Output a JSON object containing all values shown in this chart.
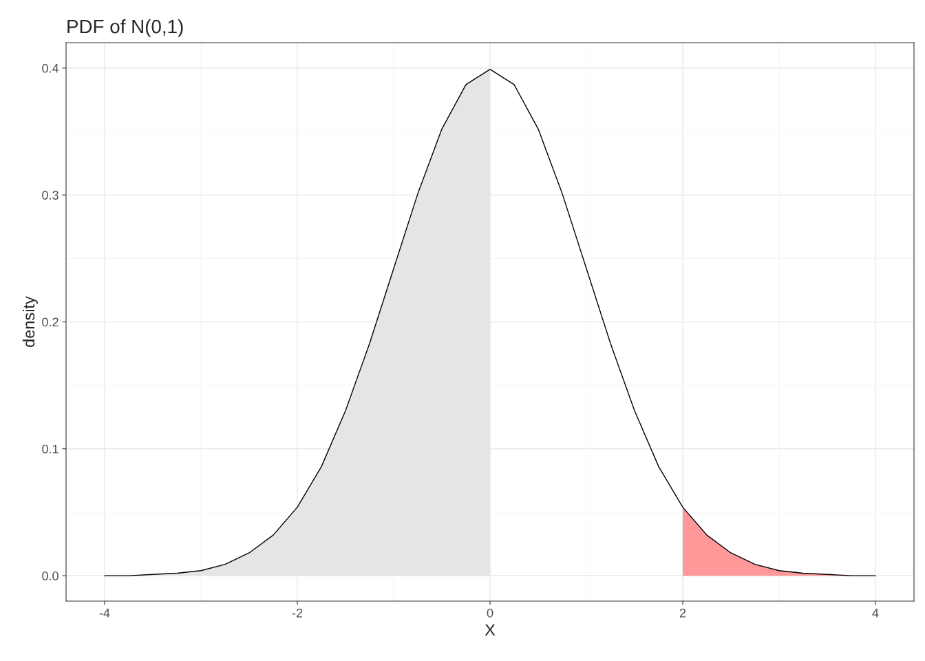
{
  "chart_data": {
    "type": "line",
    "title": "PDF of N(0,1)",
    "xlabel": "X",
    "ylabel": "density",
    "xlim": [
      -4.4,
      4.4
    ],
    "xticks": [
      -4,
      -2,
      0,
      2,
      4
    ],
    "ylim": [
      -0.02,
      0.42
    ],
    "yticks": [
      {
        "value": 0,
        "label": "0.0"
      },
      0.1,
      0.2,
      0.3,
      0.4
    ],
    "grid": true,
    "legend": false,
    "marker": "none",
    "line_style": "solid",
    "series": [
      {
        "type": "area",
        "color": "#e5e5e5",
        "x": [
          -4,
          -3.75,
          -3.5,
          -3.25,
          -3,
          -2.75,
          -2.5,
          -2.25,
          -2,
          -1.75,
          -1.5,
          -1.25,
          -1,
          -0.75,
          -0.5,
          -0.25,
          0
        ],
        "values": [
          0.0,
          0.0,
          0.001,
          0.002,
          0.004,
          0.009,
          0.018,
          0.032,
          0.054,
          0.086,
          0.13,
          0.183,
          0.242,
          0.301,
          0.352,
          0.387,
          0.399
        ]
      },
      {
        "type": "area",
        "color": "#ff9999",
        "x": [
          2,
          2.25,
          2.5,
          2.75,
          3,
          3.25,
          3.5,
          3.75,
          4
        ],
        "values": [
          0.054,
          0.032,
          0.018,
          0.009,
          0.004,
          0.002,
          0.001,
          0.0,
          0.0
        ]
      },
      {
        "color": "#000000",
        "x": [
          -4,
          -3.75,
          -3.5,
          -3.25,
          -3,
          -2.75,
          -2.5,
          -2.25,
          -2,
          -1.75,
          -1.5,
          -1.25,
          -1,
          -0.75,
          -0.5,
          -0.25,
          0,
          0.25,
          0.5,
          0.75,
          1,
          1.25,
          1.5,
          1.75,
          2,
          2.25,
          2.5,
          2.75,
          3,
          3.25,
          3.5,
          3.75,
          4
        ],
        "values": [
          0.0,
          0.0,
          0.001,
          0.002,
          0.004,
          0.009,
          0.018,
          0.032,
          0.054,
          0.086,
          0.13,
          0.183,
          0.242,
          0.301,
          0.352,
          0.387,
          0.399,
          0.387,
          0.352,
          0.301,
          0.242,
          0.183,
          0.13,
          0.086,
          0.054,
          0.032,
          0.018,
          0.009,
          0.004,
          0.002,
          0.001,
          0.0,
          0.0
        ]
      }
    ]
  }
}
